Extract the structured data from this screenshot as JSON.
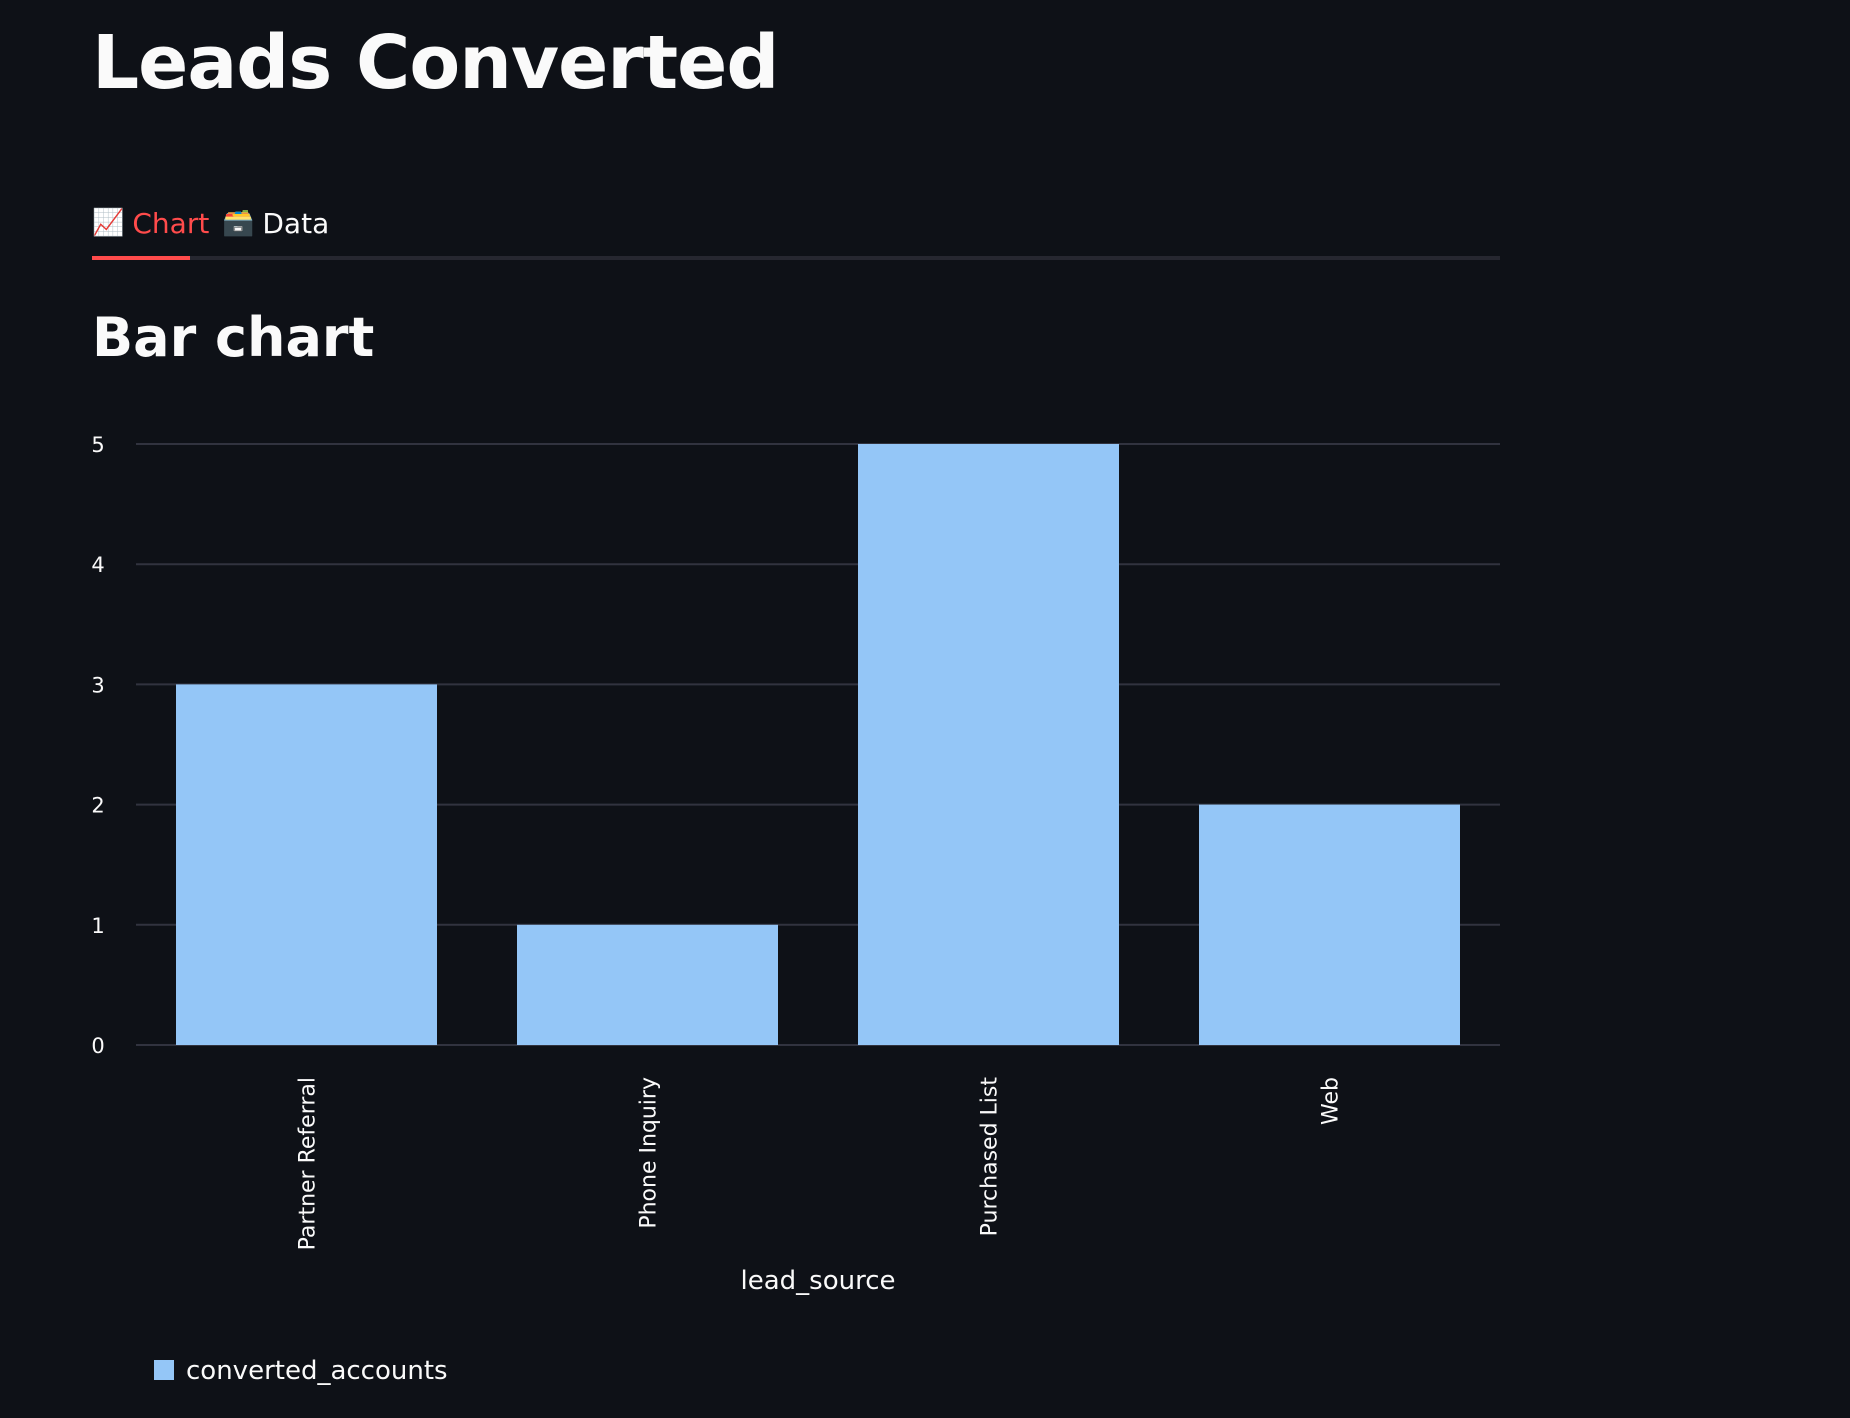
{
  "page": {
    "title": "Leads Converted",
    "section_title": "Bar chart"
  },
  "tabs": [
    {
      "label": "Chart",
      "icon": "chart-increasing-icon",
      "glyph": "📈",
      "active": true
    },
    {
      "label": "Data",
      "icon": "card-file-box-icon",
      "glyph": "🗃️",
      "active": false
    }
  ],
  "colors": {
    "background": "#0e1117",
    "accent": "#ff4b4b",
    "bar": "#94c6f7",
    "grid": "#31333f",
    "text": "#fafafa"
  },
  "chart_data": {
    "type": "bar",
    "categories": [
      "Partner Referral",
      "Phone Inquiry",
      "Purchased List",
      "Web"
    ],
    "series": [
      {
        "name": "converted_accounts",
        "values": [
          3,
          1,
          5,
          2
        ]
      }
    ],
    "xlabel": "lead_source",
    "ylabel": "",
    "ylim": [
      0,
      5
    ],
    "yticks": [
      0,
      1,
      2,
      3,
      4,
      5
    ],
    "grid": true,
    "legend_position": "bottom-left",
    "x_tick_rotation": "vertical"
  }
}
